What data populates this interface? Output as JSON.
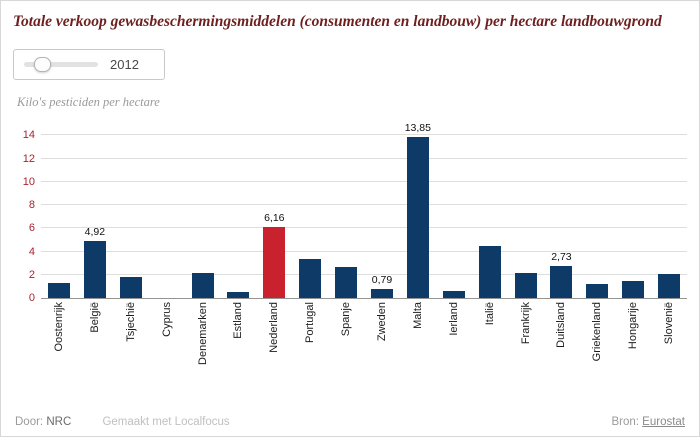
{
  "page": {
    "title": "Totale verkoop gewasbeschermingsmiddelen (consumenten en landbouw) per hectare landbouwgrond"
  },
  "slider": {
    "value": "2012"
  },
  "chart_data": {
    "type": "bar",
    "title": "Totale verkoop gewasbeschermingsmiddelen (consumenten en landbouw) per hectare landbouwgrond",
    "ylabel": "Kilo's pesticiden per hectare",
    "categories": [
      "Oostenrijk",
      "België",
      "Tsjechië",
      "Cyprus",
      "Denemarken",
      "Estland",
      "Nederland",
      "Portugal",
      "Spanje",
      "Zweden",
      "Malta",
      "Ierland",
      "Italië",
      "Frankrijk",
      "Duitsland",
      "Griekenland",
      "Hongarije",
      "Slovenië"
    ],
    "values": [
      1.3,
      4.92,
      1.8,
      0,
      2.2,
      0.5,
      6.16,
      3.4,
      2.7,
      0.79,
      13.85,
      0.6,
      4.5,
      2.2,
      2.73,
      1.2,
      1.5,
      2.1
    ],
    "bar_labels": [
      "",
      "4,92",
      "",
      "",
      "",
      "",
      "6,16",
      "",
      "",
      "0,79",
      "13,85",
      "",
      "",
      "",
      "2,73",
      "",
      "",
      ""
    ],
    "ylim": [
      0,
      14
    ],
    "yticks": [
      0,
      2,
      4,
      6,
      8,
      10,
      12,
      14
    ],
    "grid": true,
    "legend": "none",
    "bar_color": "#0d3a66",
    "highlight_color": "#c9222e",
    "highlight_index": 6
  },
  "footer": {
    "door_label": "Door:",
    "door_value": "NRC",
    "made_with": "Gemaakt met Localfocus",
    "bron_label": "Bron:",
    "bron_value": "Eurostat"
  }
}
